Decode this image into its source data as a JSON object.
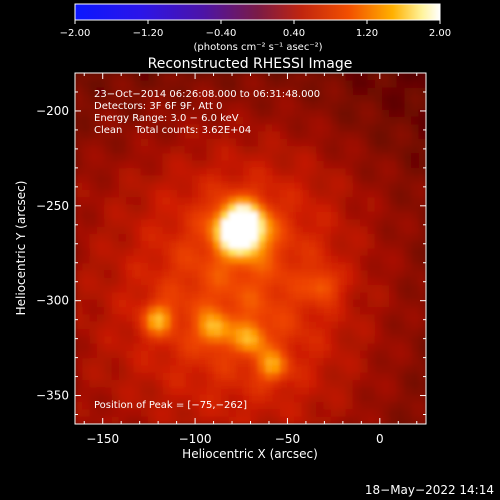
{
  "chart_data": {
    "type": "heatmap",
    "title": "Reconstructed RHESSI Image",
    "xlabel": "Heliocentric X (arcsec)",
    "ylabel": "Heliocentric Y (arcsec)",
    "xlim": [
      -165,
      25
    ],
    "ylim": [
      -365,
      -180
    ],
    "x_ticks": [
      -150,
      -100,
      -50,
      0
    ],
    "y_ticks": [
      -200,
      -250,
      -300,
      -350
    ],
    "x_tick_labels": [
      "−150",
      "−100",
      "−50",
      "0"
    ],
    "y_tick_labels": [
      "−200",
      "−250",
      "−300",
      "−350"
    ],
    "colorbar": {
      "min": -2.0,
      "max": 2.0,
      "colormap": "blue-to-red-to-white",
      "tick_values": [
        -2.0,
        -1.2,
        -0.4,
        0.4,
        1.2,
        2.0
      ],
      "tick_labels": [
        "−2.00",
        "−1.20",
        "−0.40",
        "0.40",
        "1.20",
        "2.00"
      ],
      "unit_label": "(photons cm⁻² s⁻¹ asec⁻²)"
    },
    "info_lines": [
      "23−Oct−2014 06:26:08.000 to 06:31:48.000",
      "Detectors: 3F 6F 9F, Att 0",
      "Energy Range: 3.0 − 6.0 keV",
      "Clean    Total counts: 3.62E+04"
    ],
    "peak_label": "Position of Peak = [−75,−262]",
    "peak": [
      -75,
      -262
    ],
    "sources": [
      {
        "x": -75,
        "y": -262,
        "intensity": 2.0
      },
      {
        "x": -120,
        "y": -310,
        "intensity": 0.75
      },
      {
        "x": -90,
        "y": -315,
        "intensity": 0.65
      },
      {
        "x": -70,
        "y": -320,
        "intensity": 0.6
      },
      {
        "x": -58,
        "y": -335,
        "intensity": 0.65
      },
      {
        "x": -30,
        "y": -292,
        "intensity": 0.5
      }
    ]
  },
  "timestamp": "18−May−2022 14:14"
}
